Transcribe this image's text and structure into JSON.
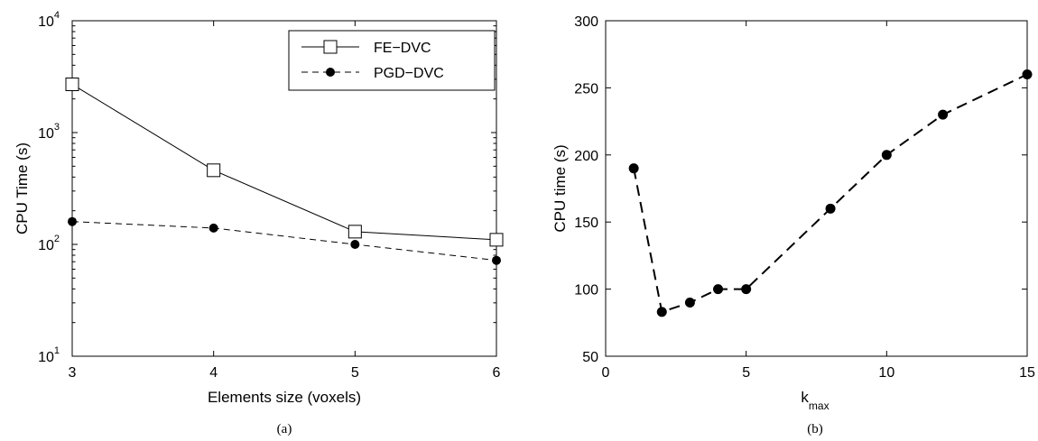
{
  "chart_data": [
    {
      "type": "line",
      "panel_label": "(a)",
      "xlabel": "Elements size (voxels)",
      "ylabel": "CPU Time (s)",
      "xlim": [
        3,
        6
      ],
      "ylim": [
        10,
        10000
      ],
      "yscale": "log",
      "x_ticks": [
        "3",
        "4",
        "5",
        "6"
      ],
      "y_ticks": [
        {
          "value": 10,
          "base": "10",
          "exp": "1"
        },
        {
          "value": 100,
          "base": "10",
          "exp": "2"
        },
        {
          "value": 1000,
          "base": "10",
          "exp": "3"
        },
        {
          "value": 10000,
          "base": "10",
          "exp": "4"
        }
      ],
      "grid": false,
      "legend_position": "top-right",
      "x": [
        3,
        4,
        5,
        6
      ],
      "series": [
        {
          "name": "FE−DVC",
          "values": [
            2700,
            460,
            130,
            110
          ],
          "style": "solid",
          "marker": "open-square"
        },
        {
          "name": "PGD−DVC",
          "values": [
            160,
            140,
            100,
            72
          ],
          "style": "dashed",
          "marker": "filled-circle"
        }
      ]
    },
    {
      "type": "line",
      "panel_label": "(b)",
      "xlabel": "k",
      "xlabel_sub": "max",
      "ylabel": "CPU time (s)",
      "xlim": [
        0,
        15
      ],
      "ylim": [
        50,
        300
      ],
      "x_ticks": [
        "0",
        "5",
        "10",
        "15"
      ],
      "y_ticks": [
        "50",
        "100",
        "150",
        "200",
        "250",
        "300"
      ],
      "grid": false,
      "x": [
        1,
        2,
        3,
        4,
        5,
        8,
        10,
        12,
        15
      ],
      "series": [
        {
          "values": [
            190,
            83,
            90,
            100,
            100,
            160,
            200,
            230,
            260
          ],
          "style": "dashed",
          "marker": "filled-circle"
        }
      ]
    }
  ]
}
